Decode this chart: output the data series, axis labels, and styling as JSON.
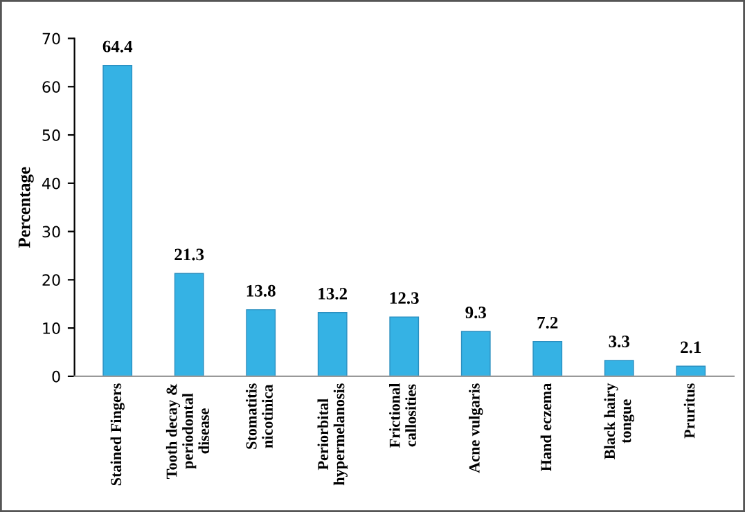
{
  "chart_data": {
    "type": "bar",
    "ylabel": "Percentage",
    "categories": [
      "Stained Fingers",
      "Tooth decay &\nperiodontal\ndisease",
      "Stomatitis\nnicotinica",
      "Periorbital\nhypermelanosis",
      "Frictional\ncallosities",
      "Acne vulgaris",
      "Hand eczema",
      "Black hairy\ntongue",
      "Pruritus"
    ],
    "values": [
      64.4,
      21.3,
      13.8,
      13.2,
      12.3,
      9.3,
      7.2,
      3.3,
      2.1
    ],
    "color": "#35b2e4",
    "ylim": [
      0,
      70
    ],
    "yticks": [
      0,
      10,
      20,
      30,
      40,
      50,
      60,
      70
    ],
    "data_labels": true,
    "grid": false
  }
}
